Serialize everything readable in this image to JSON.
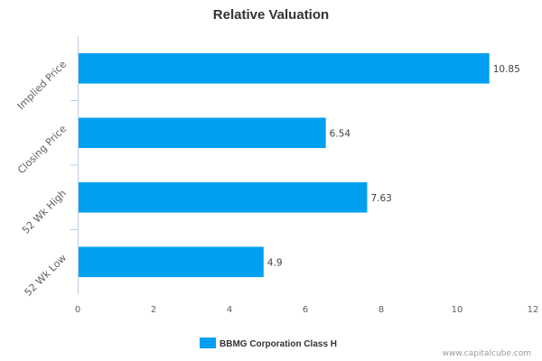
{
  "chart_data": {
    "type": "bar",
    "orientation": "horizontal",
    "title": "Relative Valuation",
    "categories": [
      "Implied Price",
      "Closing Price",
      "52 Wk High",
      "52 Wk Low"
    ],
    "series": [
      {
        "name": "BBMG Corporation Class H",
        "values": [
          10.85,
          6.54,
          7.63,
          4.9
        ],
        "color": "#00a0f0"
      }
    ],
    "data_labels": [
      "10.85",
      "6.54",
      "7.63",
      "4.9"
    ],
    "xlim": [
      0,
      12
    ],
    "x_ticks": [
      0,
      2,
      4,
      6,
      8,
      10,
      12
    ],
    "grid": false,
    "legend_position": "bottom"
  },
  "credit": "www.capitalcube.com"
}
